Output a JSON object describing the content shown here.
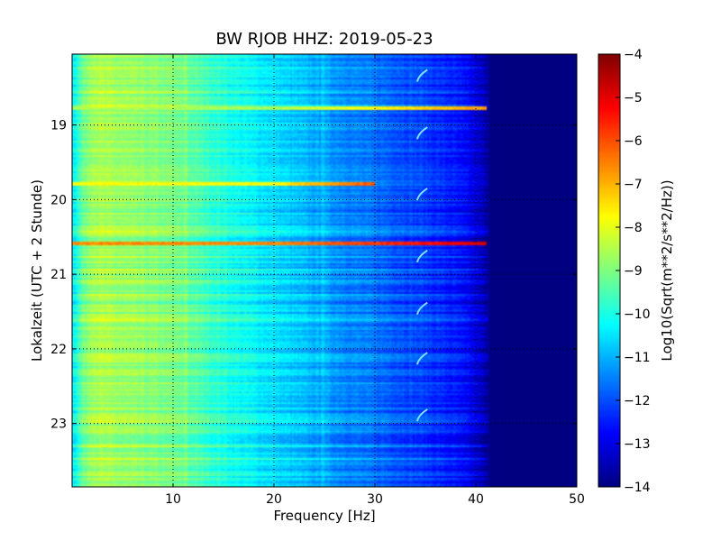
{
  "chart_data": {
    "type": "heatmap",
    "title": "BW RJOB HHZ: 2019-05-23",
    "xlabel": "Frequency [Hz]",
    "ylabel": "Lokalzeit (UTC + 2 Stunde)",
    "xlim": [
      0,
      50
    ],
    "ylim": [
      18.05,
      23.85
    ],
    "y_inverted": true,
    "xticks": [
      10,
      20,
      30,
      40,
      50
    ],
    "yticks": [
      19,
      20,
      21,
      22,
      23
    ],
    "grid": true,
    "colormap": "jet",
    "colorbar": {
      "label": "Log10(Sqrt(m**2/s**2/Hz))",
      "range": [
        -14,
        -4
      ],
      "ticks": [
        -4,
        -5,
        -6,
        -7,
        -8,
        -9,
        -10,
        -11,
        -12,
        -13,
        -14
      ]
    },
    "spectrum_profile": [
      {
        "freq": 0.3,
        "value": -10.2
      },
      {
        "freq": 1,
        "value": -9.3
      },
      {
        "freq": 2,
        "value": -8.6
      },
      {
        "freq": 5,
        "value": -8.8
      },
      {
        "freq": 10,
        "value": -9.1
      },
      {
        "freq": 13,
        "value": -9.6
      },
      {
        "freq": 16,
        "value": -10.1
      },
      {
        "freq": 20,
        "value": -10.6
      },
      {
        "freq": 25,
        "value": -11.2
      },
      {
        "freq": 30,
        "value": -11.7
      },
      {
        "freq": 35,
        "value": -12.2
      },
      {
        "freq": 38,
        "value": -12.6
      },
      {
        "freq": 40,
        "value": -13.1
      },
      {
        "freq": 41.5,
        "value": -14
      },
      {
        "freq": 50,
        "value": -14
      }
    ],
    "strong_bands": [
      {
        "time": 18.77,
        "value": -8.6,
        "fmax": 41
      },
      {
        "time": 19.79,
        "value": -7.8,
        "fmax": 30
      },
      {
        "time": 20.59,
        "value": -6.6,
        "fmax": 41
      }
    ],
    "recurring_feature": {
      "freq_start": 34.2,
      "freq_end": 35.2,
      "times": [
        18.33,
        19.1,
        19.92,
        20.75,
        21.45,
        22.12,
        22.88
      ]
    }
  }
}
